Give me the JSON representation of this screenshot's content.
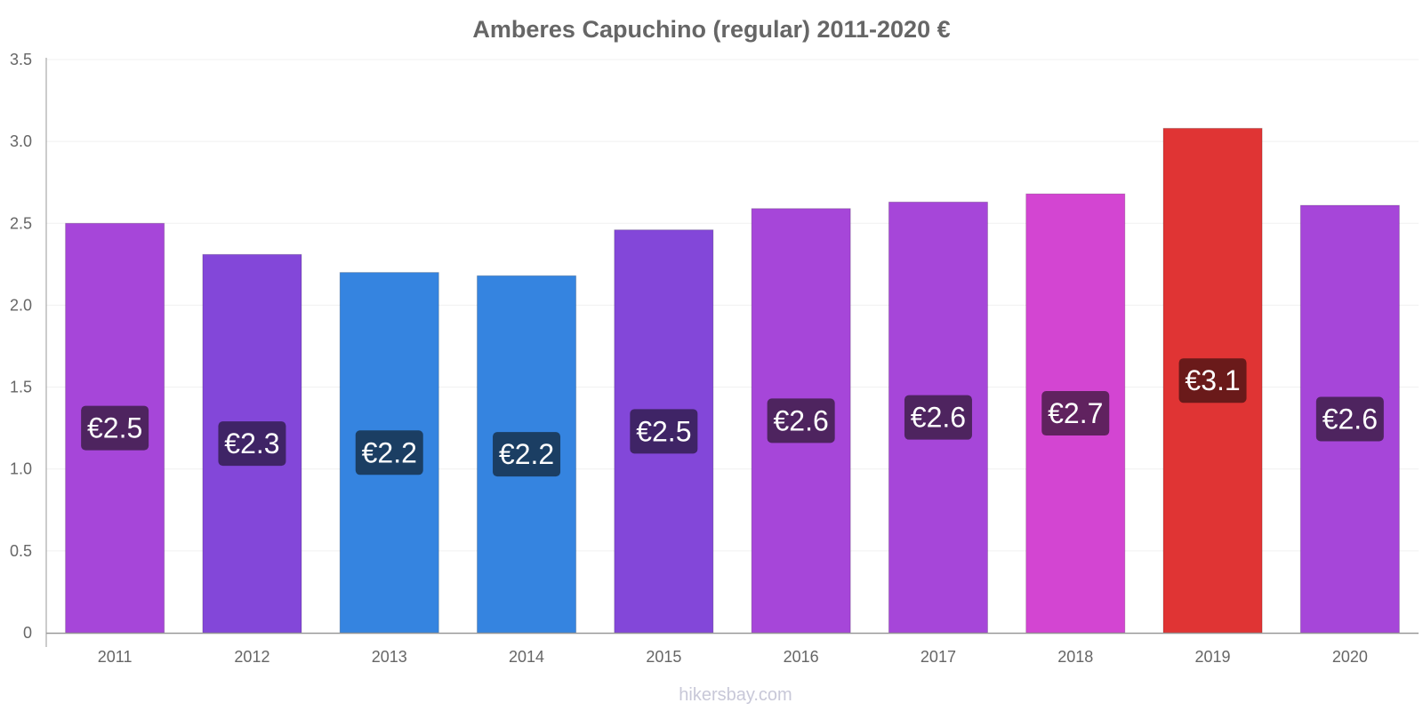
{
  "chart_data": {
    "type": "bar",
    "title": "Amberes Capuchino (regular) 2011-2020 €",
    "xlabel": "",
    "ylabel": "",
    "ylim": [
      0,
      3.5
    ],
    "yticks": [
      "0",
      "0.5",
      "1.0",
      "1.5",
      "2.0",
      "2.5",
      "3.0",
      "3.5"
    ],
    "grid": true,
    "categories": [
      "2011",
      "2012",
      "2013",
      "2014",
      "2015",
      "2016",
      "2017",
      "2018",
      "2019",
      "2020"
    ],
    "values": [
      2.5,
      2.31,
      2.2,
      2.18,
      2.46,
      2.59,
      2.63,
      2.68,
      3.08,
      2.61
    ],
    "data_labels": [
      "€2.5",
      "€2.3",
      "€2.2",
      "€2.2",
      "€2.5",
      "€2.6",
      "€2.6",
      "€2.7",
      "€3.1",
      "€2.6"
    ],
    "bar_colors": [
      "#a646d9",
      "#8347d9",
      "#3584e0",
      "#3584e0",
      "#8347d9",
      "#a646d9",
      "#a646d9",
      "#d345d2",
      "#e03434",
      "#a646d9"
    ],
    "label_colors": [
      "#4e245f",
      "#3f2466",
      "#1b3e63",
      "#1b3e63",
      "#3f2466",
      "#4e245f",
      "#4e245f",
      "#60225f",
      "#6a1a1a",
      "#4e245f"
    ]
  },
  "watermark": "hikersbay.com"
}
